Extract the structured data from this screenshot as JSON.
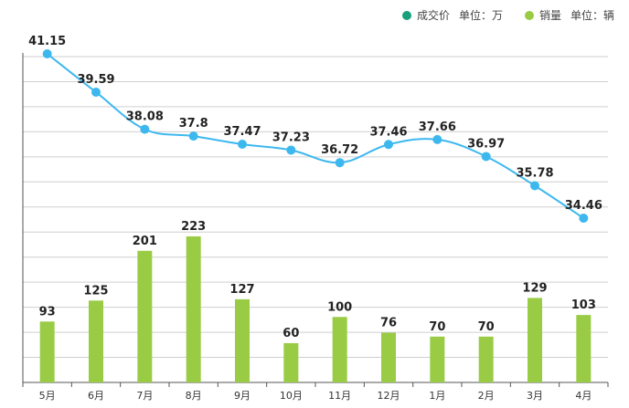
{
  "chart_data": {
    "type": "bar+line",
    "categories": [
      "5月",
      "6月",
      "7月",
      "8月",
      "9月",
      "10月",
      "11月",
      "12月",
      "1月",
      "2月",
      "3月",
      "4月"
    ],
    "series": [
      {
        "name": "成交价",
        "unit_label": "单位：万",
        "type": "line",
        "color": "#3db8ef",
        "legend_color": "#18a07a",
        "values": [
          41.15,
          39.59,
          38.08,
          37.8,
          37.47,
          37.23,
          36.72,
          37.46,
          37.66,
          36.97,
          35.78,
          34.46
        ],
        "labels": [
          "41.15",
          "39.59",
          "38.08",
          "37.8",
          "37.47",
          "37.23",
          "36.72",
          "37.46",
          "37.66",
          "36.97",
          "35.78",
          "34.46"
        ]
      },
      {
        "name": "销量",
        "unit_label": "单位：辆",
        "type": "bar",
        "color": "#99cc44",
        "legend_color": "#99cc44",
        "values": [
          93,
          125,
          201,
          223,
          127,
          60,
          100,
          76,
          70,
          70,
          129,
          103
        ],
        "labels": [
          "93",
          "125",
          "201",
          "223",
          "127",
          "60",
          "100",
          "76",
          "70",
          "70",
          "129",
          "103"
        ]
      }
    ],
    "title": "",
    "xlabel": "",
    "ylabel": "",
    "grid": true
  }
}
